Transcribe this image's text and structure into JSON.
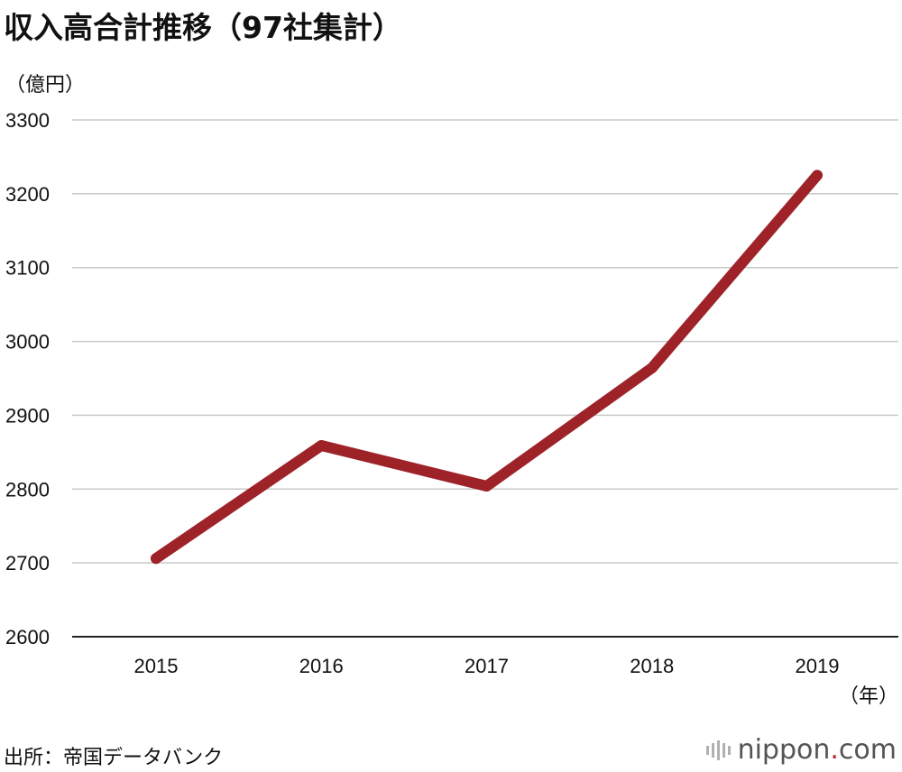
{
  "title": "収入高合計推移（97社集計）",
  "source": "出所：帝国データバンク",
  "brand": {
    "name": "nippon",
    "dot": ".",
    "suffix": "com",
    "icon": "bars-icon"
  },
  "colors": {
    "line": "#9e2329",
    "grid": "#c8c8c8",
    "axis": "#222222",
    "brand_dot": "#c0282d"
  },
  "chart_data": {
    "type": "line",
    "title": "収入高合計推移（97社集計）",
    "ylabel": "（億円）",
    "xlabel": "（年）",
    "x": [
      "2015",
      "2016",
      "2017",
      "2018",
      "2019"
    ],
    "yticks": [
      2600,
      2700,
      2800,
      2900,
      3000,
      3100,
      3200,
      3300
    ],
    "ylim": [
      2600,
      3300
    ],
    "grid": true,
    "series": [
      {
        "values": [
          2706,
          2859,
          2804,
          2964,
          3225
        ]
      }
    ]
  }
}
